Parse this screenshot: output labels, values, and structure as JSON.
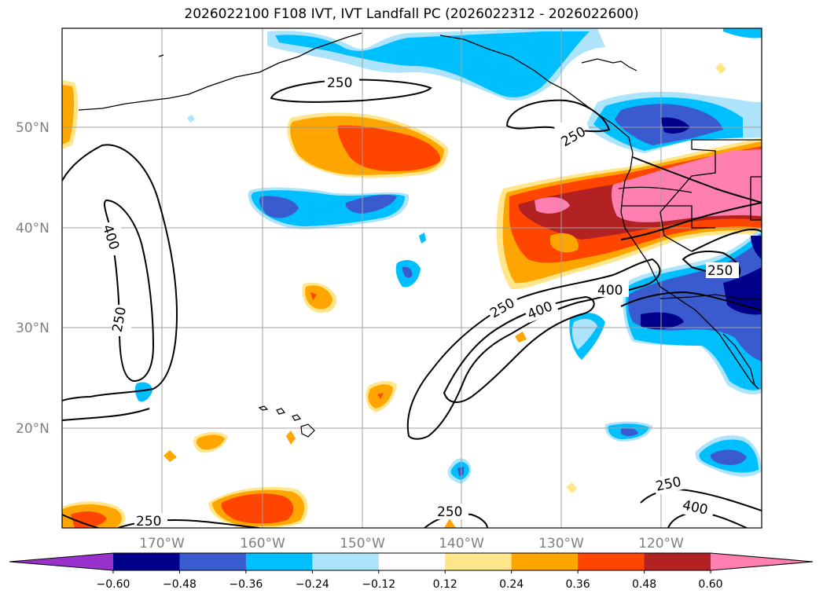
{
  "title": "2026022100 F108 IVT, IVT Landfall PC (2026022312 - 2026022600)",
  "map": {
    "lat_labels": [
      "50°N",
      "40°N",
      "30°N",
      "20°N"
    ],
    "lon_labels": [
      "170°W",
      "160°W",
      "150°W",
      "140°W",
      "130°W",
      "120°W"
    ],
    "gridlines": true
  },
  "contour_labels": [
    {
      "text": "250",
      "id": "contour-label-250-north"
    },
    {
      "text": "250",
      "id": "contour-label-250-coast-north"
    },
    {
      "text": "400",
      "id": "contour-label-400-west"
    },
    {
      "text": "250",
      "id": "contour-label-250-west"
    },
    {
      "text": "250",
      "id": "contour-label-250-central"
    },
    {
      "text": "400",
      "id": "contour-label-400-central"
    },
    {
      "text": "400",
      "id": "contour-label-400-east"
    },
    {
      "text": "250",
      "id": "contour-label-250-southwest-coast"
    },
    {
      "text": "250",
      "id": "contour-label-250-south"
    },
    {
      "text": "250",
      "id": "contour-label-250-southeast"
    },
    {
      "text": "400",
      "id": "contour-label-400-southeast"
    },
    {
      "text": "250",
      "id": "contour-label-250-bottom-left"
    }
  ],
  "colorbar": {
    "ticks": [
      "−0.60",
      "−0.48",
      "−0.36",
      "−0.24",
      "−0.12",
      "0.12",
      "0.24",
      "0.36",
      "0.48",
      "0.60"
    ],
    "colors": [
      "#9932cc",
      "#00008b",
      "#3a5bd0",
      "#00bfff",
      "#aee4fb",
      "#ffffff",
      "#ffe68a",
      "#ffa500",
      "#ff4500",
      "#b22222",
      "#ff80b0"
    ]
  }
}
